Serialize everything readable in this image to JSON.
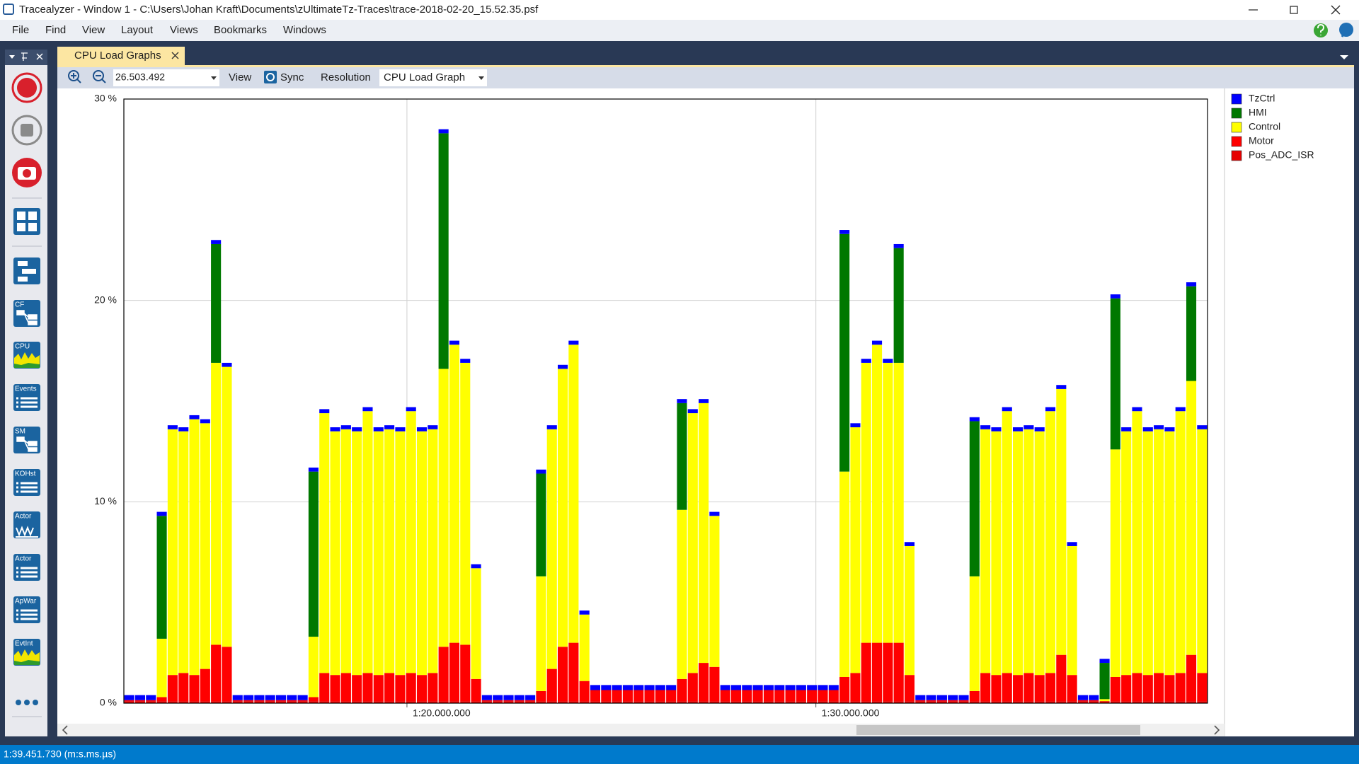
{
  "window": {
    "title": "Tracealyzer - Window 1 - C:\\Users\\Johan Kraft\\Documents\\zUltimateTz-Traces\\trace-2018-02-20_15.52.35.psf"
  },
  "menu": [
    "File",
    "Find",
    "View",
    "Layout",
    "Views",
    "Bookmarks",
    "Windows"
  ],
  "tab": "CPU Load Graphs",
  "toolbar": {
    "zoom": "26.503.492",
    "view": "View",
    "sync": "Sync",
    "resolution": "Resolution",
    "graph": "CPU Load Graph"
  },
  "sidebar_labels": [
    "CF",
    "CPU",
    "Events",
    "SM",
    "KOHst",
    "Actor",
    "Actor",
    "ApWar",
    "EvtInt"
  ],
  "status": "1:39.451.730 (m:s.ms.µs)",
  "chart_data": {
    "type": "bar",
    "stacked": true,
    "grid": true,
    "legend": "right",
    "x": [
      73.21,
      73.475,
      73.74,
      74.005,
      74.27,
      74.535,
      74.8,
      75.065,
      75.33,
      75.595,
      75.86,
      76.125,
      76.39,
      76.655,
      76.92,
      77.185,
      77.45,
      77.715,
      77.98,
      78.245,
      78.51,
      78.775,
      79.04,
      79.305,
      79.57,
      79.835,
      80.1,
      80.365,
      80.63,
      80.895,
      81.16,
      81.425,
      81.69,
      81.955,
      82.22,
      82.485,
      82.75,
      83.015,
      83.28,
      83.545,
      83.81,
      84.075,
      84.34,
      84.605,
      84.87,
      85.135,
      85.4,
      85.665,
      85.93,
      86.195,
      86.46,
      86.725,
      86.99,
      87.255,
      87.52,
      87.785,
      88.05,
      88.315,
      88.58,
      88.845,
      89.11,
      89.375,
      89.64,
      89.905,
      90.17,
      90.435,
      90.7,
      90.965,
      91.23,
      91.495,
      91.76,
      92.025,
      92.29,
      92.555,
      92.82,
      93.085,
      93.35,
      93.615,
      93.88,
      94.145,
      94.41,
      94.675,
      94.94,
      95.205,
      95.47,
      95.735,
      96.0,
      96.265,
      96.53,
      96.795,
      97.06,
      97.325,
      97.59,
      97.855,
      98.12,
      98.385,
      98.65,
      98.915,
      99.18,
      99.445
    ],
    "xlim": [
      73.0775,
      99.5775
    ],
    "xticks": [
      {
        "value": 80,
        "label": "1:20.000.000"
      },
      {
        "value": 90,
        "label": "1:30.000.000"
      }
    ],
    "ylim": [
      0,
      30
    ],
    "yticks": [
      {
        "value": 0,
        "label": "0 %"
      },
      {
        "value": 10,
        "label": "10 %"
      },
      {
        "value": 20,
        "label": "20 %"
      },
      {
        "value": 30,
        "label": "30 %"
      }
    ],
    "series": [
      {
        "name": "TzCtrl",
        "color": "#0000ff",
        "values": [
          0.25,
          0.25,
          0.25,
          0.2,
          0.2,
          0.2,
          0.2,
          0.2,
          0.2,
          0.2,
          0.25,
          0.25,
          0.25,
          0.25,
          0.25,
          0.25,
          0.25,
          0.2,
          0.2,
          0.2,
          0.2,
          0.2,
          0.2,
          0.2,
          0.2,
          0.2,
          0.2,
          0.2,
          0.2,
          0.2,
          0.2,
          0.2,
          0.2,
          0.25,
          0.25,
          0.25,
          0.25,
          0.25,
          0.2,
          0.2,
          0.2,
          0.2,
          0.2,
          0.25,
          0.25,
          0.25,
          0.25,
          0.25,
          0.25,
          0.25,
          0.25,
          0.2,
          0.2,
          0.2,
          0.2,
          0.25,
          0.25,
          0.25,
          0.25,
          0.25,
          0.25,
          0.25,
          0.25,
          0.25,
          0.25,
          0.25,
          0.2,
          0.2,
          0.2,
          0.2,
          0.2,
          0.2,
          0.2,
          0.25,
          0.25,
          0.25,
          0.25,
          0.25,
          0.2,
          0.2,
          0.2,
          0.2,
          0.2,
          0.2,
          0.2,
          0.2,
          0.2,
          0.2,
          0.25,
          0.25,
          0.2,
          0.2,
          0.2,
          0.2,
          0.2,
          0.2,
          0.2,
          0.2,
          0.2,
          0.2
        ]
      },
      {
        "name": "HMI",
        "color": "#007800",
        "values": [
          0,
          0,
          0,
          6.1,
          0,
          0,
          0,
          0,
          5.9,
          0,
          0,
          0,
          0,
          0,
          0,
          0,
          0,
          8.2,
          0,
          0,
          0,
          0,
          0,
          0,
          0,
          0,
          0,
          0,
          0,
          11.7,
          0,
          0,
          0,
          0,
          0,
          0,
          0,
          0,
          5.1,
          0,
          0,
          0,
          0,
          0,
          0,
          0,
          0,
          0,
          0,
          0,
          0,
          5.3,
          0,
          0,
          0,
          0,
          0,
          0,
          0,
          0,
          0,
          0,
          0,
          0,
          0,
          0,
          11.8,
          0,
          0,
          0,
          0,
          5.7,
          0,
          0,
          0,
          0,
          0,
          0,
          7.7,
          0,
          0,
          0,
          0,
          0,
          0,
          0,
          0,
          0,
          0,
          0,
          1.8,
          7.5,
          0,
          0,
          0,
          0,
          0,
          0,
          4.7,
          0
        ]
      },
      {
        "name": "Control",
        "color": "#ffff00",
        "values": [
          0,
          0,
          0,
          2.9,
          12.2,
          12.0,
          12.7,
          12.2,
          14.0,
          13.9,
          0,
          0,
          0,
          0,
          0,
          0,
          0,
          3.0,
          12.9,
          12.1,
          12.1,
          12.1,
          13.0,
          12.1,
          12.1,
          12.1,
          13.0,
          12.1,
          12.1,
          13.8,
          14.8,
          14.0,
          5.5,
          0,
          0,
          0,
          0,
          0,
          5.7,
          11.9,
          13.8,
          14.8,
          3.3,
          0,
          0,
          0,
          0,
          0,
          0,
          0,
          0,
          8.4,
          12.9,
          12.9,
          7.5,
          0,
          0,
          0,
          0,
          0,
          0,
          0,
          0,
          0,
          0,
          0,
          10.2,
          12.2,
          13.9,
          14.8,
          13.9,
          13.9,
          6.4,
          0,
          0,
          0,
          0,
          0,
          5.7,
          12.1,
          12.1,
          13.0,
          12.1,
          12.1,
          12.1,
          13.0,
          13.2,
          6.4,
          0,
          0,
          0.1,
          11.3,
          12.1,
          13.0,
          12.1,
          12.1,
          12.1,
          13.0,
          13.6,
          12.1
        ]
      },
      {
        "name": "Motor",
        "color": "#ff0000",
        "values": [
          0.05,
          0.05,
          0.05,
          0.2,
          1.3,
          1.4,
          1.3,
          1.6,
          2.8,
          2.7,
          0.05,
          0.05,
          0.05,
          0.05,
          0.05,
          0.05,
          0.05,
          0.2,
          1.4,
          1.3,
          1.4,
          1.3,
          1.4,
          1.3,
          1.4,
          1.3,
          1.4,
          1.3,
          1.4,
          2.7,
          2.9,
          2.8,
          1.1,
          0.05,
          0.05,
          0.05,
          0.05,
          0.05,
          0.5,
          1.6,
          2.7,
          2.9,
          1.0,
          0.55,
          0.55,
          0.55,
          0.55,
          0.55,
          0.55,
          0.55,
          0.55,
          1.1,
          1.4,
          1.9,
          1.7,
          0.55,
          0.55,
          0.55,
          0.55,
          0.55,
          0.55,
          0.55,
          0.55,
          0.55,
          0.55,
          0.55,
          1.2,
          1.4,
          2.9,
          2.9,
          2.9,
          2.9,
          1.3,
          0.05,
          0.05,
          0.05,
          0.05,
          0.05,
          0.5,
          1.4,
          1.3,
          1.4,
          1.3,
          1.4,
          1.3,
          1.4,
          2.3,
          1.3,
          0.05,
          0.05,
          0,
          1.2,
          1.3,
          1.4,
          1.3,
          1.4,
          1.3,
          1.4,
          2.3,
          1.4
        ]
      },
      {
        "name": "Pos_ADC_ISR",
        "color": "#e60000",
        "values": [
          0.1,
          0.1,
          0.1,
          0.1,
          0.1,
          0.1,
          0.1,
          0.1,
          0.1,
          0.1,
          0.1,
          0.1,
          0.1,
          0.1,
          0.1,
          0.1,
          0.1,
          0.1,
          0.1,
          0.1,
          0.1,
          0.1,
          0.1,
          0.1,
          0.1,
          0.1,
          0.1,
          0.1,
          0.1,
          0.1,
          0.1,
          0.1,
          0.1,
          0.1,
          0.1,
          0.1,
          0.1,
          0.1,
          0.1,
          0.1,
          0.1,
          0.1,
          0.1,
          0.1,
          0.1,
          0.1,
          0.1,
          0.1,
          0.1,
          0.1,
          0.1,
          0.1,
          0.1,
          0.1,
          0.1,
          0.1,
          0.1,
          0.1,
          0.1,
          0.1,
          0.1,
          0.1,
          0.1,
          0.1,
          0.1,
          0.1,
          0.1,
          0.1,
          0.1,
          0.1,
          0.1,
          0.1,
          0.1,
          0.1,
          0.1,
          0.1,
          0.1,
          0.1,
          0.1,
          0.1,
          0.1,
          0.1,
          0.1,
          0.1,
          0.1,
          0.1,
          0.1,
          0.1,
          0.1,
          0.1,
          0.1,
          0.1,
          0.1,
          0.1,
          0.1,
          0.1,
          0.1,
          0.1,
          0.1,
          0.1
        ]
      }
    ]
  }
}
